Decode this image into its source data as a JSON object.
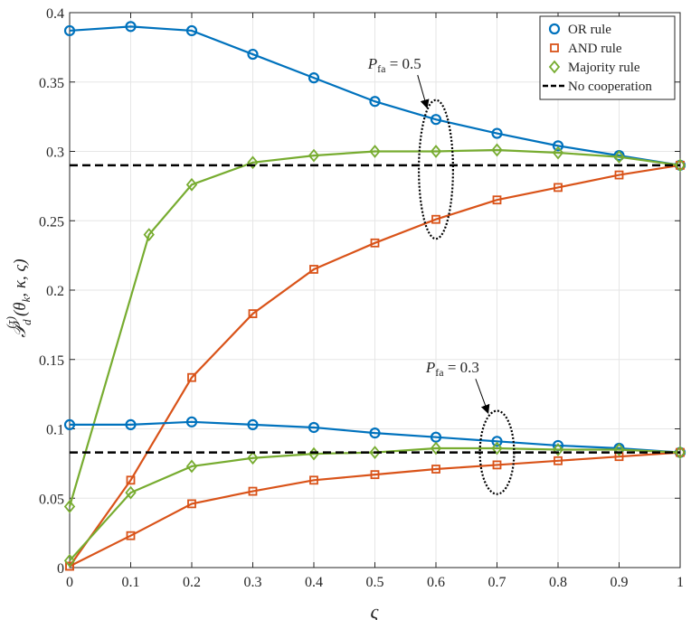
{
  "chart_data": {
    "type": "line",
    "title": "",
    "xlabel": "ς",
    "ylabel_main": "𝒫",
    "ylabel_sub": "d",
    "ylabel_sup": "(τ)",
    "ylabel_args": "(θ",
    "ylabel_args_sub": "k",
    "ylabel_args_rest": ", κ, ς)",
    "xlim": [
      0,
      1
    ],
    "ylim": [
      0,
      0.4
    ],
    "xticks": [
      0,
      0.1,
      0.2,
      0.3,
      0.4,
      0.5,
      0.6,
      0.7,
      0.8,
      0.9,
      1
    ],
    "xtick_labels": [
      "0",
      "0.1",
      "0.2",
      "0.3",
      "0.4",
      "0.5",
      "0.6",
      "0.7",
      "0.8",
      "0.9",
      "1"
    ],
    "yticks": [
      0,
      0.05,
      0.1,
      0.15,
      0.2,
      0.25,
      0.3,
      0.35,
      0.4
    ],
    "ytick_labels": [
      "0",
      "0.05",
      "0.1",
      "0.15",
      "0.2",
      "0.25",
      "0.3",
      "0.35",
      "0.4"
    ],
    "grid": true,
    "legend_position": "top-right",
    "legend": [
      {
        "label": "OR rule",
        "color": "#0072BD",
        "marker": "circle",
        "style": "solid"
      },
      {
        "label": "AND rule",
        "color": "#D95319",
        "marker": "square",
        "style": "solid"
      },
      {
        "label": "Majority rule",
        "color": "#77AC30",
        "marker": "diamond",
        "style": "solid"
      },
      {
        "label": "No cooperation",
        "color": "#000000",
        "marker": "none",
        "style": "dashed"
      }
    ],
    "series": [
      {
        "name": "OR rule (P_fa = 0.5)",
        "color": "#0072BD",
        "marker": "circle",
        "x": [
          0,
          0.1,
          0.2,
          0.3,
          0.4,
          0.5,
          0.6,
          0.7,
          0.8,
          0.9,
          1
        ],
        "y": [
          0.387,
          0.39,
          0.387,
          0.37,
          0.353,
          0.336,
          0.323,
          0.313,
          0.304,
          0.297,
          0.29
        ]
      },
      {
        "name": "AND rule (P_fa = 0.5)",
        "color": "#D95319",
        "marker": "square",
        "x": [
          0,
          0.1,
          0.2,
          0.3,
          0.4,
          0.5,
          0.6,
          0.7,
          0.8,
          0.9,
          1
        ],
        "y": [
          0.001,
          0.063,
          0.137,
          0.183,
          0.215,
          0.234,
          0.251,
          0.265,
          0.274,
          0.283,
          0.29
        ]
      },
      {
        "name": "Majority rule (P_fa = 0.5)",
        "color": "#77AC30",
        "marker": "diamond",
        "x": [
          0,
          0.13,
          0.2,
          0.3,
          0.4,
          0.5,
          0.6,
          0.7,
          0.8,
          0.9,
          1
        ],
        "y": [
          0.044,
          0.24,
          0.276,
          0.292,
          0.297,
          0.3,
          0.3,
          0.301,
          0.299,
          0.296,
          0.29
        ]
      },
      {
        "name": "No cooperation (P_fa = 0.5)",
        "color": "#000000",
        "marker": "none",
        "dashed": true,
        "x": [
          0,
          1
        ],
        "y": [
          0.29,
          0.29
        ]
      },
      {
        "name": "OR rule (P_fa = 0.3)",
        "color": "#0072BD",
        "marker": "circle",
        "x": [
          0,
          0.1,
          0.2,
          0.3,
          0.4,
          0.5,
          0.6,
          0.7,
          0.8,
          0.9,
          1
        ],
        "y": [
          0.103,
          0.103,
          0.105,
          0.103,
          0.101,
          0.097,
          0.094,
          0.091,
          0.088,
          0.086,
          0.083
        ]
      },
      {
        "name": "AND rule (P_fa = 0.3)",
        "color": "#D95319",
        "marker": "square",
        "x": [
          0,
          0.1,
          0.2,
          0.3,
          0.4,
          0.5,
          0.6,
          0.7,
          0.8,
          0.9,
          1
        ],
        "y": [
          0.001,
          0.023,
          0.046,
          0.055,
          0.063,
          0.067,
          0.071,
          0.074,
          0.077,
          0.08,
          0.083
        ]
      },
      {
        "name": "Majority rule (P_fa = 0.3)",
        "color": "#77AC30",
        "marker": "diamond",
        "x": [
          0,
          0.1,
          0.2,
          0.3,
          0.4,
          0.5,
          0.6,
          0.7,
          0.8,
          0.9,
          1
        ],
        "y": [
          0.005,
          0.054,
          0.073,
          0.079,
          0.082,
          0.083,
          0.086,
          0.086,
          0.085,
          0.085,
          0.083
        ]
      },
      {
        "name": "No cooperation (P_fa = 0.3)",
        "color": "#000000",
        "marker": "none",
        "dashed": true,
        "x": [
          0,
          1
        ],
        "y": [
          0.083,
          0.083
        ]
      }
    ],
    "marker_overrides": {
      "OR rule (P_fa = 0.3)": {
        "x": [
          0,
          0.1,
          0.2,
          0.3,
          0.4,
          0.5,
          0.6,
          0.7,
          0.8,
          0.9,
          1
        ]
      },
      "Majority rule (P_fa = 0.3)": {
        "x": [
          0,
          0.1,
          0.2,
          0.3,
          0.4,
          0.5,
          0.6,
          0.7,
          0.8,
          0.9,
          1
        ]
      }
    },
    "annotations": [
      {
        "label_main": "P",
        "label_sub": "fa",
        "label_value": " = 0.5",
        "ellipse_center": [
          0.6,
          0.287
        ],
        "ellipse_radii": [
          0.028,
          0.05
        ],
        "arrow_from": [
          0.57,
          0.355
        ],
        "arrow_to": [
          0.585,
          0.332
        ]
      },
      {
        "label_main": "P",
        "label_sub": "fa",
        "label_value": " = 0.3",
        "ellipse_center": [
          0.7,
          0.083
        ],
        "ellipse_radii": [
          0.028,
          0.03
        ],
        "arrow_from": [
          0.665,
          0.136
        ],
        "arrow_to": [
          0.685,
          0.112
        ]
      }
    ]
  }
}
